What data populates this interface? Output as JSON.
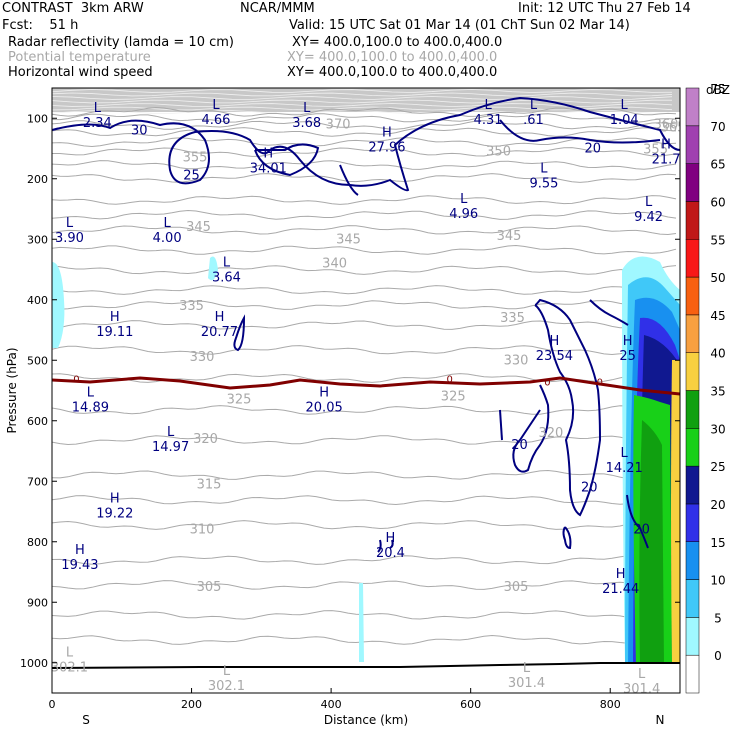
{
  "header": {
    "title": "CONTRAST",
    "model": "3km ARW",
    "org": "NCAR/MMM",
    "init": "Init: 12 UTC Thu 27 Feb 14",
    "fcst_label": "Fcst:",
    "fcst_value": "51 h",
    "valid": "Valid: 15 UTC Sat 01 Mar 14 (01 ChT Sun 02 Mar 14)",
    "fields": [
      {
        "name": "Radar reflectivity (lamda = 10 cm)",
        "xy": "XY= 400.0,100.0 to 400.0,400.0",
        "color": "#000000"
      },
      {
        "name": "Potential temperature",
        "xy": "XY= 400.0,100.0 to 400.0,400.0",
        "color": "#b0b0b0"
      },
      {
        "name": "Horizontal wind speed",
        "xy": "XY= 400.0,100.0 to 400.0,400.0",
        "color": "#000080"
      }
    ]
  },
  "chart_data": {
    "type": "contour-cross-section",
    "xlabel": "Distance (km)",
    "ylabel": "Pressure (hPa)",
    "xlim": [
      0,
      900
    ],
    "ylim": [
      1050,
      50
    ],
    "x_ticks": [
      0,
      200,
      400,
      600,
      800
    ],
    "y_ticks": [
      100,
      200,
      300,
      400,
      500,
      600,
      700,
      800,
      900,
      1000
    ],
    "x_end_labels": {
      "left": "S",
      "right": "N"
    },
    "colorbar": {
      "unit": "dBZ",
      "levels": [
        0,
        5,
        10,
        15,
        20,
        25,
        30,
        35,
        40,
        45,
        50,
        55,
        60,
        65,
        70,
        75
      ],
      "colors": [
        "#ffffff",
        "#a0f8ff",
        "#40c8f8",
        "#1890f0",
        "#3030e8",
        "#101890",
        "#18d018",
        "#10a010",
        "#f8d040",
        "#f8a040",
        "#f86010",
        "#f81818",
        "#c01818",
        "#800080",
        "#a040b0",
        "#c080c8"
      ]
    },
    "theta_labels": [
      {
        "v": "370",
        "x": 410,
        "p": 110
      },
      {
        "v": "365",
        "x": 890,
        "p": 115
      },
      {
        "v": "360",
        "x": 880,
        "p": 110
      },
      {
        "v": "355",
        "x": 205,
        "p": 165
      },
      {
        "v": "350",
        "x": 640,
        "p": 155
      },
      {
        "v": "355",
        "x": 865,
        "p": 152
      },
      {
        "v": "345",
        "x": 210,
        "p": 280
      },
      {
        "v": "345",
        "x": 425,
        "p": 300
      },
      {
        "v": "345",
        "x": 655,
        "p": 295
      },
      {
        "v": "340",
        "x": 405,
        "p": 340
      },
      {
        "v": "335",
        "x": 200,
        "p": 410
      },
      {
        "v": "335",
        "x": 660,
        "p": 430
      },
      {
        "v": "330",
        "x": 215,
        "p": 495
      },
      {
        "v": "330",
        "x": 665,
        "p": 500
      },
      {
        "v": "325",
        "x": 268,
        "p": 565
      },
      {
        "v": "325",
        "x": 575,
        "p": 560
      },
      {
        "v": "320",
        "x": 220,
        "p": 630
      },
      {
        "v": "320",
        "x": 715,
        "p": 620
      },
      {
        "v": "315",
        "x": 225,
        "p": 705
      },
      {
        "v": "310",
        "x": 215,
        "p": 780
      },
      {
        "v": "305",
        "x": 225,
        "p": 875
      },
      {
        "v": "305",
        "x": 665,
        "p": 875
      }
    ],
    "extrema": [
      {
        "k": "L",
        "v": "2.34",
        "x": 65,
        "p": 90
      },
      {
        "k": "L",
        "v": "4.66",
        "x": 235,
        "p": 85
      },
      {
        "k": "L",
        "v": "3.68",
        "x": 365,
        "p": 90
      },
      {
        "k": "L",
        "v": "4.31",
        "x": 625,
        "p": 85
      },
      {
        "k": "L",
        "v": ".61",
        "x": 690,
        "p": 85
      },
      {
        "k": "L",
        "v": "1.04",
        "x": 820,
        "p": 85
      },
      {
        "k": "H",
        "v": "27.96",
        "x": 480,
        "p": 130
      },
      {
        "k": "H",
        "v": "34.01",
        "x": 310,
        "p": 165
      },
      {
        "k": "H",
        "v": "21.7",
        "x": 880,
        "p": 150
      },
      {
        "k": "L",
        "v": "9.55",
        "x": 705,
        "p": 190
      },
      {
        "k": "L",
        "v": "4.96",
        "x": 590,
        "p": 240
      },
      {
        "k": "L",
        "v": "9.42",
        "x": 855,
        "p": 245
      },
      {
        "k": "L",
        "v": "3.90",
        "x": 25,
        "p": 280
      },
      {
        "k": "L",
        "v": "4.00",
        "x": 165,
        "p": 280
      },
      {
        "k": "L",
        "v": "3.64",
        "x": 250,
        "p": 345
      },
      {
        "k": "H",
        "v": "19.11",
        "x": 90,
        "p": 435
      },
      {
        "k": "H",
        "v": "20.77",
        "x": 240,
        "p": 435
      },
      {
        "k": "H",
        "v": "23.54",
        "x": 720,
        "p": 475
      },
      {
        "k": "H",
        "v": "25",
        "x": 825,
        "p": 475
      },
      {
        "k": "L",
        "v": "14.89",
        "x": 55,
        "p": 560
      },
      {
        "k": "H",
        "v": "20.05",
        "x": 390,
        "p": 560
      },
      {
        "k": "L",
        "v": "14.97",
        "x": 170,
        "p": 625
      },
      {
        "k": "L",
        "v": "14.21",
        "x": 820,
        "p": 660
      },
      {
        "k": "H",
        "v": "19.22",
        "x": 90,
        "p": 735
      },
      {
        "k": "H",
        "v": "20.4",
        "x": 485,
        "p": 800
      },
      {
        "k": "H",
        "v": "19.43",
        "x": 40,
        "p": 820
      },
      {
        "k": "H",
        "v": "21.44",
        "x": 815,
        "p": 860
      },
      {
        "k": "L",
        "v": "302.1",
        "x": 25,
        "p": 990
      },
      {
        "k": "L",
        "v": "302.1",
        "x": 250,
        "p": 1020
      },
      {
        "k": "L",
        "v": "301.4",
        "x": 680,
        "p": 1015
      },
      {
        "k": "L",
        "v": "301.4",
        "x": 845,
        "p": 1025
      }
    ],
    "wind_labels": [
      {
        "v": "30",
        "x": 125,
        "p": 120
      },
      {
        "v": "25",
        "x": 200,
        "p": 195
      },
      {
        "v": "20",
        "x": 775,
        "p": 150
      },
      {
        "v": "20",
        "x": 670,
        "p": 640
      },
      {
        "v": "20",
        "x": 770,
        "p": 710
      },
      {
        "v": "20",
        "x": 845,
        "p": 780
      }
    ],
    "freezing_labels": [
      {
        "v": "0",
        "x": 35,
        "p": 530
      },
      {
        "v": "0",
        "x": 570,
        "p": 530
      },
      {
        "v": "0",
        "x": 710,
        "p": 535
      },
      {
        "v": "0",
        "x": 785,
        "p": 535
      }
    ]
  }
}
